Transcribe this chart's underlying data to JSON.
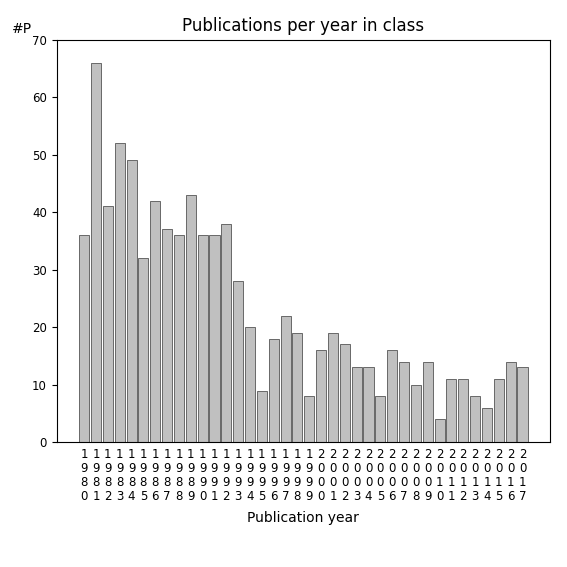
{
  "years": [
    1980,
    1981,
    1982,
    1983,
    1984,
    1985,
    1986,
    1987,
    1988,
    1989,
    1990,
    1991,
    1992,
    1993,
    1994,
    1995,
    1996,
    1997,
    1998,
    1999,
    2000,
    2001,
    2002,
    2003,
    2004,
    2005,
    2006,
    2007,
    2008,
    2009,
    2010,
    2011,
    2012,
    2013,
    2014,
    2015,
    2016,
    2017
  ],
  "values": [
    36,
    66,
    41,
    52,
    49,
    32,
    42,
    37,
    36,
    43,
    36,
    36,
    38,
    28,
    20,
    9,
    18,
    22,
    19,
    8,
    16,
    19,
    17,
    13,
    13,
    8,
    16,
    14,
    10,
    14,
    4,
    11,
    11,
    8,
    6,
    11,
    14,
    13
  ],
  "bar_color": "#c0c0c0",
  "bar_edge_color": "#555555",
  "title": "Publications per year in class",
  "xlabel": "Publication year",
  "ylabel": "#P",
  "ylim": [
    0,
    70
  ],
  "yticks": [
    0,
    10,
    20,
    30,
    40,
    50,
    60,
    70
  ],
  "background_color": "#ffffff",
  "title_fontsize": 12,
  "label_fontsize": 10,
  "tick_fontsize": 8.5
}
